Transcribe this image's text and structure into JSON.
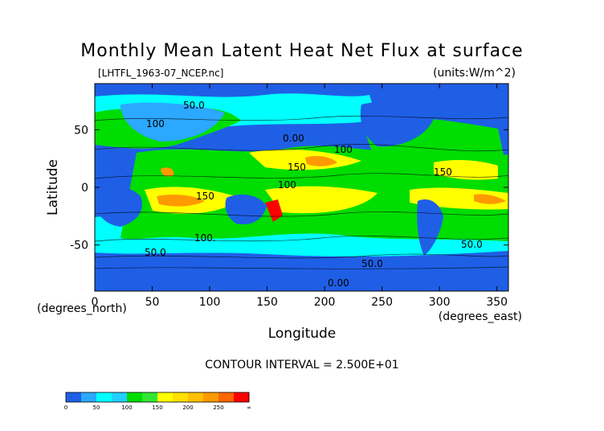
{
  "chart_data": {
    "type": "heatmap",
    "title": "Monthly Mean Latent Heat Net Flux at surface",
    "file_label": "[LHTFL_1963-07_NCEP.nc]",
    "units_label": "(units:W/m^2)",
    "xlabel": "Longitude",
    "ylabel": "Latitude",
    "x_unit_note": "(degrees_east)",
    "y_unit_note": "(degrees_north)",
    "xlim": [
      0,
      360
    ],
    "ylim": [
      -90,
      90
    ],
    "x_ticks": [
      0,
      50,
      100,
      150,
      200,
      250,
      300,
      350
    ],
    "y_ticks": [
      50,
      0,
      -50
    ],
    "contour_interval_text": "CONTOUR INTERVAL = 2.500E+01",
    "contour_labels": [
      "50.0",
      "100",
      "0.00",
      "100",
      "150",
      "150",
      "100",
      "150",
      "100.",
      "50.0",
      "50.0",
      "50.0",
      "0.00"
    ],
    "colorbar": {
      "labels": [
        "0",
        "50",
        "100",
        "150",
        "200",
        "250",
        "∞"
      ],
      "levels": [
        0,
        25,
        50,
        75,
        100,
        125,
        150,
        175,
        200,
        225,
        250,
        275,
        300
      ],
      "colors": [
        "#1f5fe6",
        "#2ba8ff",
        "#00ffff",
        "#20d0ff",
        "#00dd00",
        "#33e633",
        "#ffff00",
        "#ffe000",
        "#ffc000",
        "#ff9900",
        "#ff6600",
        "#ff0000"
      ]
    },
    "grid": false
  }
}
